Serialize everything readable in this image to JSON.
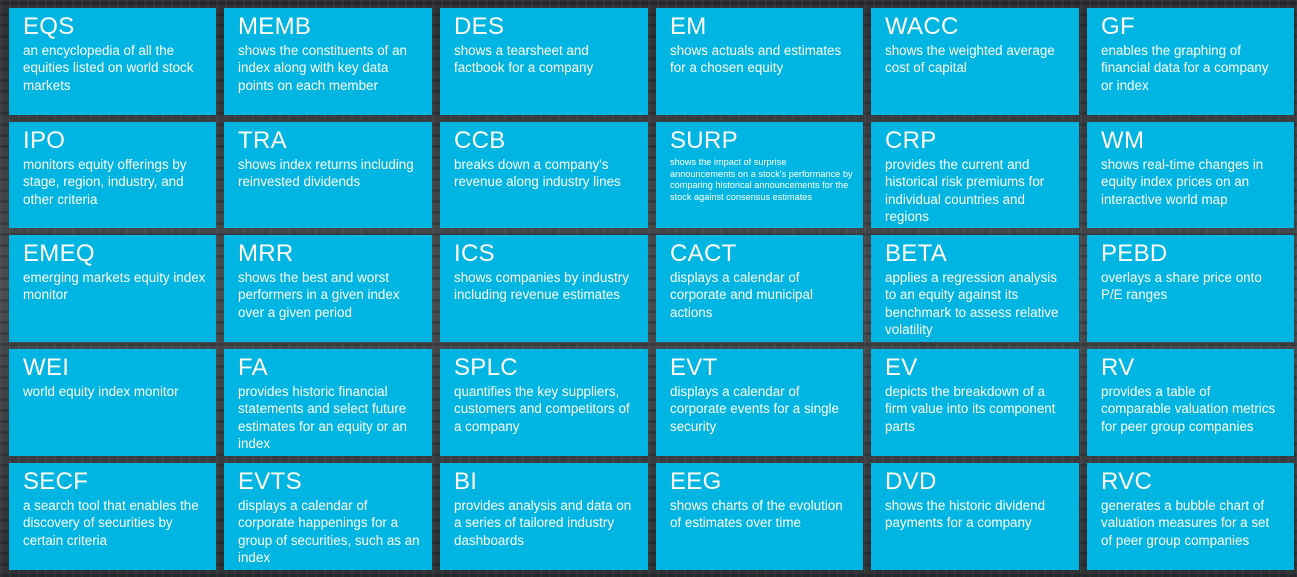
{
  "tiles": [
    {
      "code": "EQS",
      "desc": "an encyclopedia of all the equities listed on world stock markets"
    },
    {
      "code": "MEMB",
      "desc": "shows the constituents of an index along with key data points on each member"
    },
    {
      "code": "DES",
      "desc": "shows a tearsheet and factbook for a company"
    },
    {
      "code": "EM",
      "desc": "shows actuals and estimates for a chosen equity"
    },
    {
      "code": "WACC",
      "desc": "shows the weighted average cost of capital"
    },
    {
      "code": "GF",
      "desc": "enables the graphing of financial data for a company or index"
    },
    {
      "code": "IPO",
      "desc": "monitors equity offerings by stage, region, industry, and other criteria"
    },
    {
      "code": "TRA",
      "desc": "shows index returns including reinvested dividends"
    },
    {
      "code": "CCB",
      "desc": "breaks down a company's revenue along industry lines"
    },
    {
      "code": "SURP",
      "desc": "shows the impact of surprise announcements on a stock's performance by comparing historical announcements for the stock against consensus estimates"
    },
    {
      "code": "CRP",
      "desc": "provides the current and historical risk premiums for individual countries and regions"
    },
    {
      "code": "WM",
      "desc": "shows real-time changes in equity index prices on an interactive world map"
    },
    {
      "code": "EMEQ",
      "desc": "emerging markets equity index monitor"
    },
    {
      "code": "MRR",
      "desc": "shows the best and worst performers in a given index over a given period"
    },
    {
      "code": "ICS",
      "desc": "shows companies by industry including revenue estimates"
    },
    {
      "code": "CACT",
      "desc": "displays a calendar of corporate and municipal actions"
    },
    {
      "code": "BETA",
      "desc": "applies a regression analysis to an equity against its benchmark to assess relative volatility"
    },
    {
      "code": "PEBD",
      "desc": "overlays a share price onto P/E ranges"
    },
    {
      "code": "WEI",
      "desc": "world equity index monitor"
    },
    {
      "code": "FA",
      "desc": "provides historic financial statements and select future estimates for an equity or an index"
    },
    {
      "code": "SPLC",
      "desc": "quantifies the key suppliers, customers and competitors of a company"
    },
    {
      "code": "EVT",
      "desc": "displays a calendar of corporate events for a single security"
    },
    {
      "code": "EV",
      "desc": "depicts the breakdown of a firm value into its component parts"
    },
    {
      "code": "RV",
      "desc": "provides a table of comparable valuation metrics for peer group companies"
    },
    {
      "code": "SECF",
      "desc": "a search tool that enables the discovery of securities by certain criteria"
    },
    {
      "code": "EVTS",
      "desc": "displays a calendar of corporate happenings for a group of securities, such as an index"
    },
    {
      "code": "BI",
      "desc": "provides analysis and data on a series of tailored industry dashboards"
    },
    {
      "code": "EEG",
      "desc": "shows charts of the evolution of estimates over time"
    },
    {
      "code": "DVD",
      "desc": "shows the historic dividend payments for a company"
    },
    {
      "code": "RVC",
      "desc": "generates a bubble chart of valuation measures for a set of peer group companies"
    }
  ]
}
